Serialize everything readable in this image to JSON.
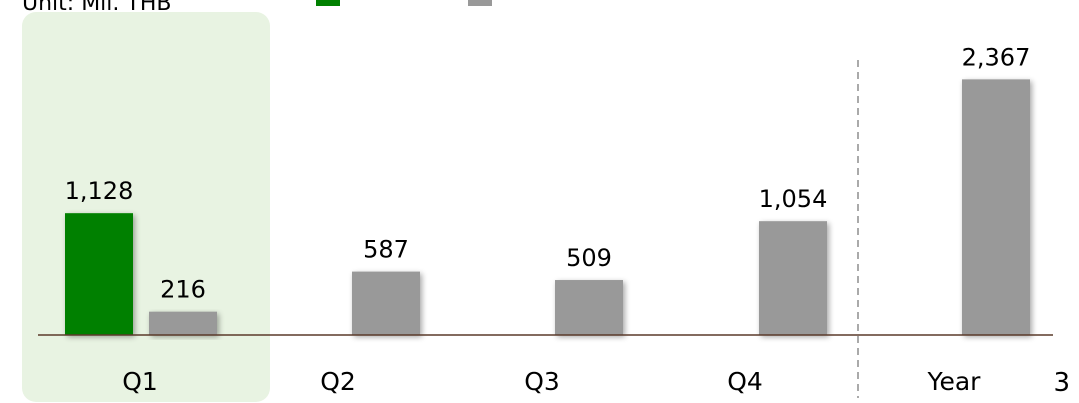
{
  "chart_data": {
    "type": "bar",
    "unit_label": "Unit: Mil. THB",
    "categories": [
      "Q1",
      "Q2",
      "Q3",
      "Q4",
      "Year"
    ],
    "series": [
      {
        "color": "#008000",
        "values": [
          1128,
          null,
          null,
          null,
          null
        ]
      },
      {
        "color": "#999999",
        "values": [
          216,
          587,
          509,
          1054,
          2367
        ]
      }
    ],
    "value_labels": {
      "green": [
        "1,128",
        "",
        "",
        "",
        ""
      ],
      "gray": [
        "216",
        "587",
        "509",
        "1,054",
        "2,367"
      ]
    },
    "ylim": [
      0,
      2500
    ],
    "highlight_category": "Q1",
    "highlight_color": "#e8f3e2",
    "grid": false,
    "legend_position": "top"
  },
  "page_number": "3"
}
